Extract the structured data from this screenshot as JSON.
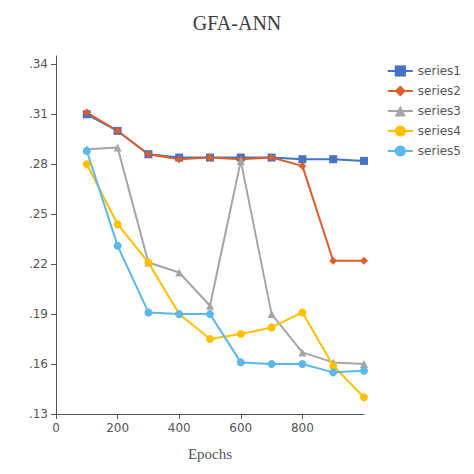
{
  "chart_data": {
    "type": "line",
    "title": "GFA-ANN",
    "xlabel": "Epochs",
    "x": [
      100,
      200,
      300,
      400,
      500,
      600,
      700,
      800,
      900,
      1000
    ],
    "series": [
      {
        "name": "series1",
        "color": "#4472C4",
        "marker": "square",
        "values": [
          0.31,
          0.3,
          0.286,
          0.284,
          0.284,
          0.284,
          0.284,
          0.283,
          0.283,
          0.282
        ]
      },
      {
        "name": "series2",
        "color": "#E05C2A",
        "marker": "diamond",
        "values": [
          0.311,
          0.3,
          0.286,
          0.283,
          0.284,
          0.283,
          0.284,
          0.279,
          0.222,
          0.222
        ]
      },
      {
        "name": "series3",
        "color": "#A5A5A5",
        "marker": "triangle",
        "values": [
          0.289,
          0.29,
          0.221,
          0.215,
          0.195,
          0.282,
          0.19,
          0.167,
          0.161,
          0.16
        ]
      },
      {
        "name": "series4",
        "color": "#FFC000",
        "marker": "circle",
        "values": [
          0.28,
          0.244,
          0.221,
          0.19,
          0.175,
          0.178,
          0.182,
          0.191,
          0.159,
          0.14
        ]
      },
      {
        "name": "series5",
        "color": "#5BB8E8",
        "marker": "circle",
        "values": [
          0.288,
          0.231,
          0.191,
          0.19,
          0.19,
          0.161,
          0.16,
          0.16,
          0.155,
          0.156
        ]
      }
    ],
    "xlim": [
      0,
      1000
    ],
    "xticks": [
      0,
      200,
      400,
      600,
      800
    ],
    "ylim": [
      0.13,
      0.345
    ],
    "yticks": [
      {
        "value": 0.13,
        "label": ".13"
      },
      {
        "value": 0.16,
        "label": ".16"
      },
      {
        "value": 0.19,
        "label": ".19"
      },
      {
        "value": 0.22,
        "label": ".22"
      },
      {
        "value": 0.25,
        "label": ".25"
      },
      {
        "value": 0.28,
        "label": ".28"
      },
      {
        "value": 0.31,
        "label": ".31"
      },
      {
        "value": 0.34,
        "label": ".34"
      }
    ],
    "grid": false,
    "legend": "right"
  }
}
